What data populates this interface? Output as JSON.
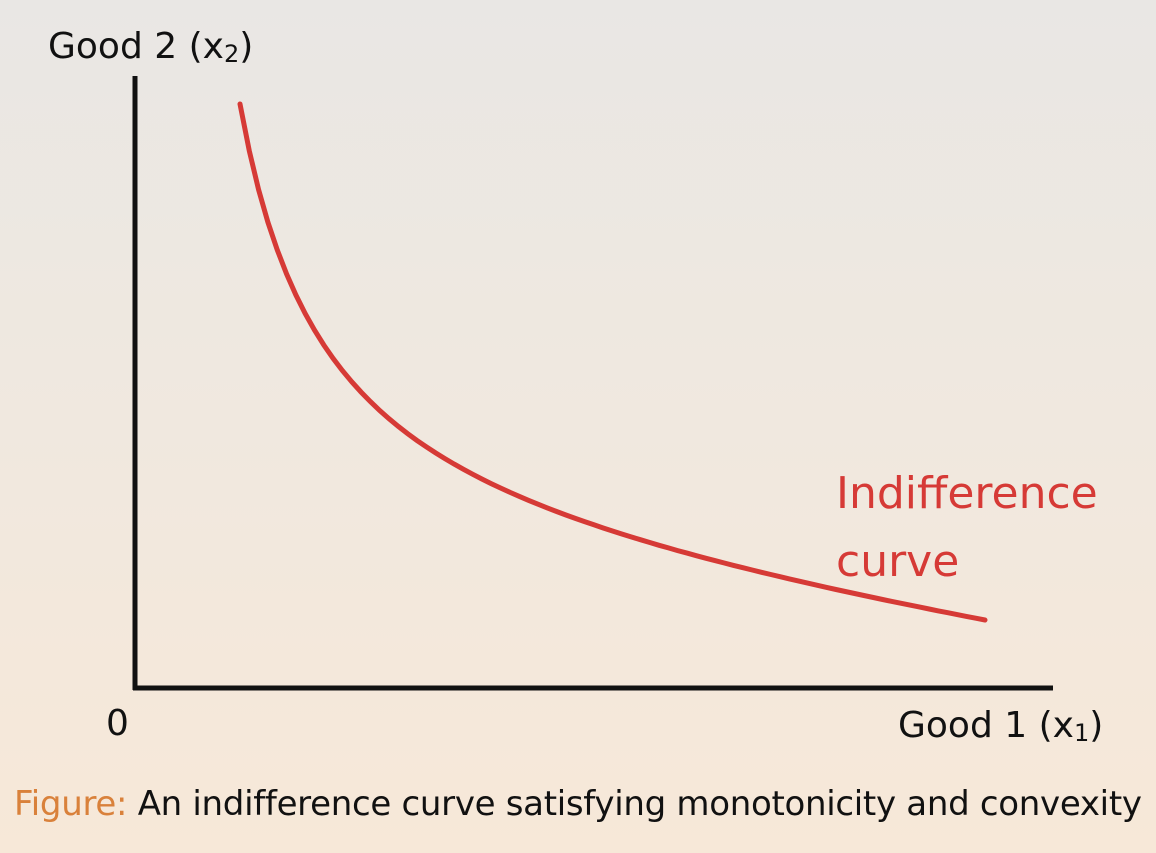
{
  "diagram": {
    "y_axis_label": "Good 2 (x",
    "y_axis_sub": "2",
    "y_axis_close": ")",
    "x_axis_label": "Good 1 (x",
    "x_axis_sub": "1",
    "x_axis_close": ")",
    "origin_label": "0",
    "curve_label_line1": "Indifference",
    "curve_label_line2": "curve",
    "curve_color": "#d63a36",
    "axis_color": "#111111"
  },
  "caption": {
    "prefix": "Figure:",
    "text": "An indifference curve satisfying monotonicity and convexity",
    "prefix_color": "#d9813b"
  }
}
